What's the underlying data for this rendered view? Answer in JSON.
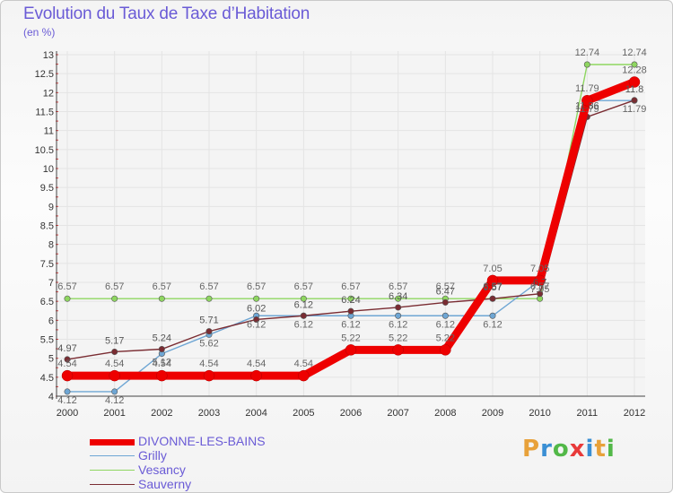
{
  "header": {
    "title": "Evolution du Taux de Taxe d’Habitation",
    "unit": "(en %)"
  },
  "brand": {
    "letters": [
      "P",
      "r",
      "o",
      "x",
      "i",
      "t",
      "i"
    ],
    "colors": [
      "#e8a13a",
      "#3a8fd4",
      "#52b848",
      "#e83a3a",
      "#3a8fd4",
      "#e8a13a",
      "#52b848"
    ]
  },
  "chart_data": {
    "type": "line",
    "title": "Evolution du Taux de Taxe d’Habitation",
    "ylabel": "(en %)",
    "xlabel": "",
    "x": [
      "2000",
      "2001",
      "2002",
      "2003",
      "2004",
      "2005",
      "2006",
      "2007",
      "2008",
      "2009",
      "2010",
      "2011",
      "2012"
    ],
    "ylim": [
      4,
      13
    ],
    "yticks": [
      "4",
      "4.5",
      "5",
      "5.5",
      "6",
      "6.5",
      "7",
      "7.5",
      "8",
      "8.5",
      "9",
      "9.5",
      "10",
      "10.5",
      "11",
      "11.5",
      "12",
      "12.5",
      "13"
    ],
    "grid": true,
    "legend_position": "bottom-left",
    "series": [
      {
        "name": "DIVONNE-LES-BAINS",
        "color": "#ee0000",
        "values": [
          4.54,
          4.54,
          4.54,
          4.54,
          4.54,
          4.54,
          5.22,
          5.22,
          5.22,
          7.05,
          7.05,
          11.79,
          12.28
        ],
        "labels": [
          "4.54",
          "4.54",
          "4.54",
          "4.54",
          "4.54",
          "4.54",
          "5.22",
          "5.22",
          "5.22",
          "7.05",
          "7.05",
          "11.79",
          "12.28"
        ]
      },
      {
        "name": "Grilly",
        "color": "#6ea6d4",
        "values": [
          4.12,
          4.12,
          5.12,
          5.62,
          6.12,
          6.12,
          6.12,
          6.12,
          6.12,
          6.12,
          7.05,
          11.79,
          11.79
        ],
        "labels": [
          "4.12",
          "4.12",
          "5.12",
          "5.62",
          "6.12",
          "6.12",
          "6.12",
          "6.12",
          "6.12",
          "6.12",
          "7.05",
          "11.79",
          "11.79"
        ]
      },
      {
        "name": "Vesancy",
        "color": "#8ed660",
        "values": [
          6.57,
          6.57,
          6.57,
          6.57,
          6.57,
          6.57,
          6.57,
          6.57,
          6.57,
          6.57,
          6.57,
          12.74,
          12.74
        ],
        "labels": [
          "6.57",
          "6.57",
          "6.57",
          "6.57",
          "6.57",
          "6.57",
          "6.57",
          "6.57",
          "6.57",
          "6.57",
          "6.57",
          "12.74",
          "12.74"
        ]
      },
      {
        "name": "Sauverny",
        "color": "#7a2c32",
        "values": [
          4.97,
          5.17,
          5.24,
          5.71,
          6.02,
          6.12,
          6.24,
          6.34,
          6.47,
          6.57,
          6.7,
          11.36,
          11.8
        ],
        "labels": [
          "4.97",
          "5.17",
          "5.24",
          "5.71",
          "6.02",
          "6.12",
          "6.24",
          "6.34",
          "6.47",
          "6.57",
          "6.7",
          "11.36",
          "11.8"
        ]
      }
    ]
  }
}
